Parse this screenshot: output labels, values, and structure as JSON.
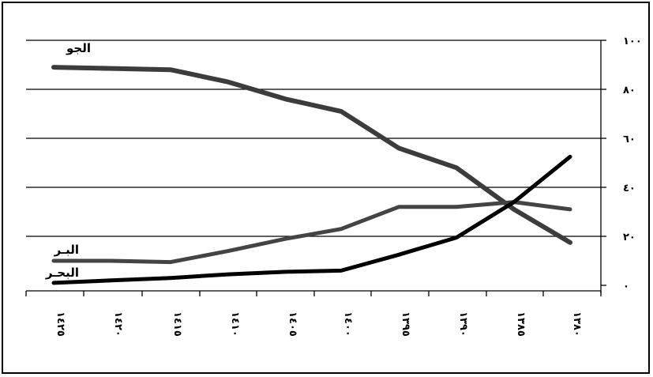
{
  "chart_data": {
    "type": "line",
    "x": [
      "١٤٢٥",
      "١٤٢٠",
      "١٤١٥",
      "١٤١٠",
      "١٤٠٥",
      "١٤٠٠",
      "١٣٩٥",
      "١٣٩٠",
      "١٣٨٥",
      "١٣٨٠"
    ],
    "x_order": "right-to-left axis printed left-to-right as listed",
    "ylim": [
      0,
      100
    ],
    "yticks": [
      "٠",
      "٢٠",
      "٤٠",
      "٦٠",
      "٨٠",
      "١٠٠"
    ],
    "ytick_values": [
      0,
      20,
      40,
      60,
      80,
      100
    ],
    "grid": "horizontal",
    "series": [
      {
        "name": "الجو",
        "color": "#3c3c3c",
        "values": [
          89,
          88.5,
          88,
          83,
          76,
          71,
          56,
          48,
          31,
          17.5
        ]
      },
      {
        "name": "البـر",
        "color": "#444444",
        "values": [
          10,
          10,
          9.5,
          14,
          19,
          23,
          32,
          32,
          34,
          31
        ]
      },
      {
        "name": "البحـر",
        "color": "#000000",
        "values": [
          1,
          2,
          3,
          4.5,
          5.5,
          6,
          12.5,
          19.5,
          34,
          52.5
        ]
      }
    ]
  }
}
